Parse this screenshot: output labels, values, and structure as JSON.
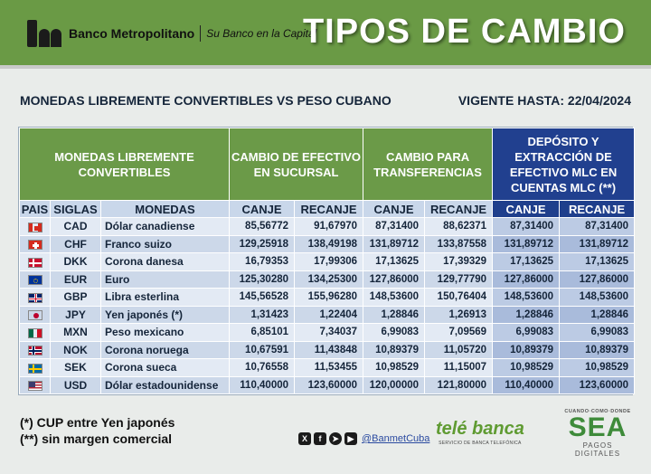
{
  "header": {
    "bank_name": "Banco Metropolitano",
    "slogan": "Su Banco en la Capital",
    "title": "TIPOS DE CAMBIO"
  },
  "subtitle": {
    "left": "MONEDAS LIBREMENTE CONVERTIBLES VS PESO CUBANO",
    "right": "VIGENTE HASTA:  22/04/2024"
  },
  "table": {
    "group_headers": {
      "currencies": "MONEDAS LIBREMENTE CONVERTIBLES",
      "cash": "CAMBIO DE EFECTIVO EN SUCURSAL",
      "transfers": "CAMBIO PARA TRANSFERENCIAS",
      "mlc": "DEPÓSITO Y EXTRACCIÓN DE EFECTIVO MLC EN CUENTAS MLC (**)"
    },
    "columns": {
      "pais": "PAIS",
      "siglas": "SIGLAS",
      "monedas": "MONEDAS",
      "canje": "CANJE",
      "recanje": "RECANJE"
    },
    "rows": [
      {
        "code": "CAD",
        "name": "Dólar canadiense",
        "cash_canje": "85,56772",
        "cash_recanje": "91,67970",
        "tr_canje": "87,31400",
        "tr_recanje": "88,62371",
        "mlc_canje": "87,31400",
        "mlc_recanje": "87,31400"
      },
      {
        "code": "CHF",
        "name": "Franco suizo",
        "cash_canje": "129,25918",
        "cash_recanje": "138,49198",
        "tr_canje": "131,89712",
        "tr_recanje": "133,87558",
        "mlc_canje": "131,89712",
        "mlc_recanje": "131,89712"
      },
      {
        "code": "DKK",
        "name": "Corona danesa",
        "cash_canje": "16,79353",
        "cash_recanje": "17,99306",
        "tr_canje": "17,13625",
        "tr_recanje": "17,39329",
        "mlc_canje": "17,13625",
        "mlc_recanje": "17,13625"
      },
      {
        "code": "EUR",
        "name": "Euro",
        "cash_canje": "125,30280",
        "cash_recanje": "134,25300",
        "tr_canje": "127,86000",
        "tr_recanje": "129,77790",
        "mlc_canje": "127,86000",
        "mlc_recanje": "127,86000"
      },
      {
        "code": "GBP",
        "name": "Libra esterlina",
        "cash_canje": "145,56528",
        "cash_recanje": "155,96280",
        "tr_canje": "148,53600",
        "tr_recanje": "150,76404",
        "mlc_canje": "148,53600",
        "mlc_recanje": "148,53600"
      },
      {
        "code": "JPY",
        "name": "Yen japonés (*)",
        "cash_canje": "1,31423",
        "cash_recanje": "1,22404",
        "tr_canje": "1,28846",
        "tr_recanje": "1,26913",
        "mlc_canje": "1,28846",
        "mlc_recanje": "1,28846"
      },
      {
        "code": "MXN",
        "name": "Peso mexicano",
        "cash_canje": "6,85101",
        "cash_recanje": "7,34037",
        "tr_canje": "6,99083",
        "tr_recanje": "7,09569",
        "mlc_canje": "6,99083",
        "mlc_recanje": "6,99083"
      },
      {
        "code": "NOK",
        "name": "Corona noruega",
        "cash_canje": "10,67591",
        "cash_recanje": "11,43848",
        "tr_canje": "10,89379",
        "tr_recanje": "11,05720",
        "mlc_canje": "10,89379",
        "mlc_recanje": "10,89379"
      },
      {
        "code": "SEK",
        "name": "Corona sueca",
        "cash_canje": "10,76558",
        "cash_recanje": "11,53455",
        "tr_canje": "10,98529",
        "tr_recanje": "11,15007",
        "mlc_canje": "10,98529",
        "mlc_recanje": "10,98529"
      },
      {
        "code": "USD",
        "name": "Dólar estadounidense",
        "cash_canje": "110,40000",
        "cash_recanje": "123,60000",
        "tr_canje": "120,00000",
        "tr_recanje": "121,80000",
        "mlc_canje": "110,40000",
        "mlc_recanje": "123,60000"
      }
    ]
  },
  "footnotes": {
    "note1": "(*) CUP entre Yen japonés",
    "note2": "(**) sin margen comercial"
  },
  "social": {
    "handle": "@BanmetCuba",
    "icons": [
      "x-icon",
      "facebook-icon",
      "telegram-icon",
      "youtube-icon"
    ]
  },
  "telebanca": {
    "name": "telé banca",
    "tagline": "SERVICIO DE BANCA TELEFÓNICA"
  },
  "sea": {
    "top": "CUANDO·COMO·DONDE",
    "big": "SEA",
    "bottom": "PAGOS DIGITALES"
  },
  "colors": {
    "header_green": "#6a9a45",
    "table_blue": "#21408f",
    "row_light": "#e3eaf4",
    "row_dark": "#ccd8e9"
  }
}
